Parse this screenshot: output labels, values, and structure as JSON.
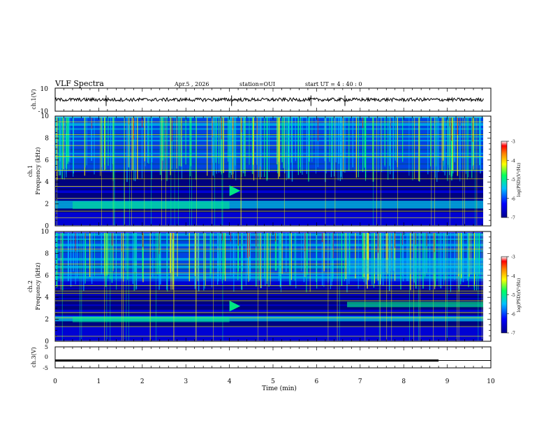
{
  "header": {
    "title": "VLF Spectra",
    "date": "Apr.5 , 2026",
    "station": "station=OUI",
    "start_ut": "start UT =  4 : 40 : 0"
  },
  "chart_data": [
    {
      "type": "line",
      "id": "ch1-waveform",
      "ylabel": "ch.1(V)",
      "ylim": [
        -10,
        10
      ],
      "yticks": [
        "10",
        "-10"
      ],
      "xlim": [
        0,
        10
      ],
      "description_values": {
        "baseline": 0,
        "noise_amplitude": 1.5,
        "spike_times_min": [
          1.17,
          4.05,
          5.87,
          6.65
        ]
      }
    },
    {
      "type": "heatmap",
      "id": "ch1-spectrogram",
      "ylabel": "ch.1\nFrequency (kHz)",
      "ylim": [
        0,
        10
      ],
      "yticks": [
        "0",
        "2",
        "4",
        "6",
        "8",
        "10"
      ],
      "xlim": [
        0,
        9.83
      ],
      "colorbar": {
        "label": "log(PSD)(V²/Hz)",
        "range": [
          -7,
          -3
        ],
        "ticks": [
          "-3",
          "-4",
          "-5",
          "-6",
          "-7"
        ]
      },
      "features": {
        "sferics_band_khz": [
          5,
          10
        ],
        "whistler_time_min": 4.0,
        "whistler_freq_khz": 3.2,
        "noise_band_khz": [
          1.5,
          2.2
        ]
      }
    },
    {
      "type": "heatmap",
      "id": "ch2-spectrogram",
      "ylabel": "ch.2\nFrequency (kHz)",
      "ylim": [
        0,
        10
      ],
      "yticks": [
        "0",
        "2",
        "4",
        "6",
        "8",
        "10"
      ],
      "xlim": [
        0,
        9.83
      ],
      "colorbar": {
        "label": "log(PSD)(V²/Hz)",
        "range": [
          -7,
          -3
        ],
        "ticks": [
          "-3",
          "-4",
          "-5",
          "-6",
          "-7"
        ]
      },
      "features": {
        "band_step_time_min": 6.7,
        "band_after_khz": [
          3.1,
          3.6
        ],
        "noise_band_khz": [
          1.7,
          2.2
        ]
      }
    },
    {
      "type": "line",
      "id": "ch3-level",
      "ylabel": "ch.3(V)",
      "ylim": [
        -5,
        5
      ],
      "yticks": [
        "5",
        "0",
        "-5"
      ],
      "xlabel": "Time (min)",
      "xlim": [
        0,
        10
      ],
      "xticks": [
        "0",
        "1",
        "2",
        "3",
        "4",
        "5",
        "6",
        "7",
        "8",
        "9",
        "10"
      ],
      "x": [
        0,
        8.8,
        8.8,
        9.83
      ],
      "y": [
        -1.5,
        -1.5,
        -1.5,
        -1.5
      ],
      "thick_until_min": 8.8
    }
  ],
  "colors": {
    "colormap": [
      "#00008f",
      "#0000ff",
      "#00bfff",
      "#00ff80",
      "#ffff00",
      "#ff8000",
      "#ff0000",
      "#ffffff"
    ],
    "axis": "#000000",
    "background": "#ffffff"
  }
}
